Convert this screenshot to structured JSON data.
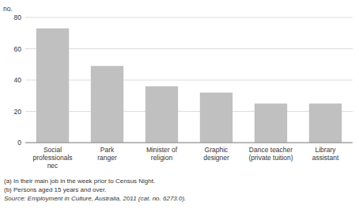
{
  "chart_data": {
    "type": "bar",
    "categories": [
      "Social\nprofessionals\nnec",
      "Park\nranger",
      "Minister of\nreligion",
      "Graphic\ndesigner",
      "Dance teacher\n(private tuition)",
      "Library\nassistant"
    ],
    "values": [
      73,
      49,
      36,
      32,
      25,
      25
    ],
    "color": "#c0c0c0",
    "ylim": [
      0,
      80
    ],
    "yticks": [
      0,
      20,
      40,
      60,
      80
    ],
    "grid": true,
    "ylabel": "no.",
    "annotations": [
      "(a) In their main job in the week prior to Census Night.",
      "(b) Persons aged 15 years and over.",
      "Source: Employment in Culture, Australia, 2011 (cat. no. 6273.0)."
    ]
  }
}
